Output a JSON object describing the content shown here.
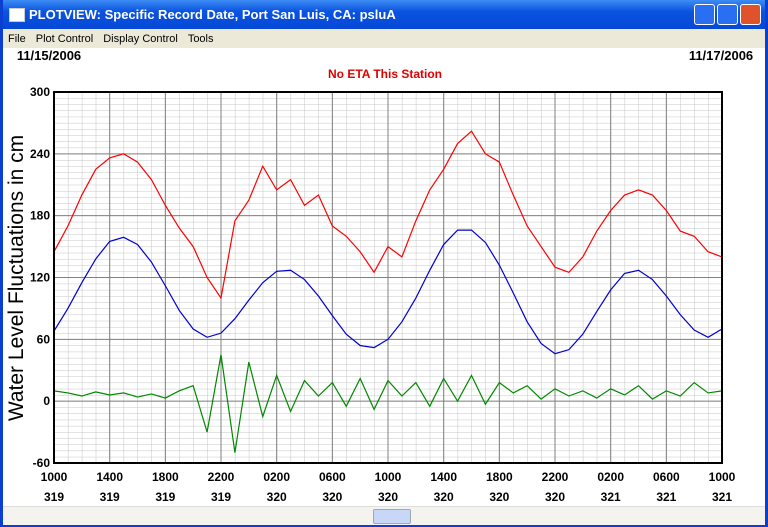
{
  "window": {
    "title": "PLOTVIEW: Specific Record Date, Port San Luis, CA: psluA",
    "menu": [
      "File",
      "Plot Control",
      "Display Control",
      "Tools"
    ]
  },
  "chart_data": {
    "type": "line",
    "date_left": "11/15/2006",
    "date_right": "11/17/2006",
    "subtitle": "No ETA This Station",
    "ylabel": "Water Level Fluctuations in cm",
    "x": [
      0,
      1,
      2,
      3,
      4,
      5,
      6,
      7,
      8,
      9,
      10,
      11,
      12,
      13,
      14,
      15,
      16,
      17,
      18,
      19,
      20,
      21,
      22,
      23,
      24,
      25,
      26,
      27,
      28,
      29,
      30,
      31,
      32,
      33,
      34,
      35,
      36,
      37,
      38,
      39,
      40,
      41,
      42,
      43,
      44,
      45,
      46,
      47,
      48
    ],
    "xlim": [
      0,
      48
    ],
    "xticks": [
      {
        "value": 0,
        "label": "1000",
        "day": "319"
      },
      {
        "value": 4,
        "label": "1400",
        "day": "319"
      },
      {
        "value": 8,
        "label": "1800",
        "day": "319"
      },
      {
        "value": 12,
        "label": "2200",
        "day": "319"
      },
      {
        "value": 16,
        "label": "0200",
        "day": "320"
      },
      {
        "value": 20,
        "label": "0600",
        "day": "320"
      },
      {
        "value": 24,
        "label": "1000",
        "day": "320"
      },
      {
        "value": 28,
        "label": "1400",
        "day": "320"
      },
      {
        "value": 32,
        "label": "1800",
        "day": "320"
      },
      {
        "value": 36,
        "label": "2200",
        "day": "320"
      },
      {
        "value": 40,
        "label": "0200",
        "day": "321"
      },
      {
        "value": 44,
        "label": "0600",
        "day": "321"
      },
      {
        "value": 48,
        "label": "1000",
        "day": "321"
      }
    ],
    "ylim": [
      -60,
      300
    ],
    "yticks": [
      -60,
      0,
      60,
      120,
      180,
      240,
      300
    ],
    "grid": true,
    "series": [
      {
        "color": "#ff0000",
        "values": [
          145,
          170,
          200,
          225,
          236,
          240,
          232,
          215,
          190,
          168,
          150,
          120,
          100,
          175,
          195,
          228,
          205,
          215,
          190,
          200,
          170,
          160,
          145,
          125,
          150,
          140,
          175,
          205,
          225,
          250,
          262,
          240,
          232,
          200,
          170,
          150,
          130,
          125,
          140,
          165,
          185,
          200,
          205,
          200,
          185,
          165,
          160,
          145,
          140
        ]
      },
      {
        "color": "#0000cc",
        "values": [
          68,
          90,
          115,
          138,
          155,
          159,
          152,
          135,
          112,
          88,
          70,
          62,
          66,
          80,
          98,
          115,
          126,
          127,
          118,
          102,
          83,
          65,
          54,
          52,
          60,
          77,
          100,
          127,
          152,
          166,
          166,
          154,
          132,
          105,
          77,
          56,
          46,
          50,
          65,
          87,
          108,
          124,
          127,
          118,
          102,
          84,
          69,
          62,
          70
        ]
      },
      {
        "color": "#008800",
        "values": [
          10,
          8,
          5,
          9,
          6,
          8,
          4,
          7,
          3,
          10,
          15,
          -30,
          45,
          -50,
          38,
          -15,
          25,
          -10,
          20,
          5,
          18,
          -5,
          22,
          -8,
          20,
          5,
          18,
          -5,
          22,
          0,
          25,
          -3,
          18,
          8,
          15,
          2,
          12,
          5,
          10,
          3,
          12,
          6,
          15,
          2,
          10,
          5,
          18,
          8,
          10
        ]
      }
    ]
  }
}
